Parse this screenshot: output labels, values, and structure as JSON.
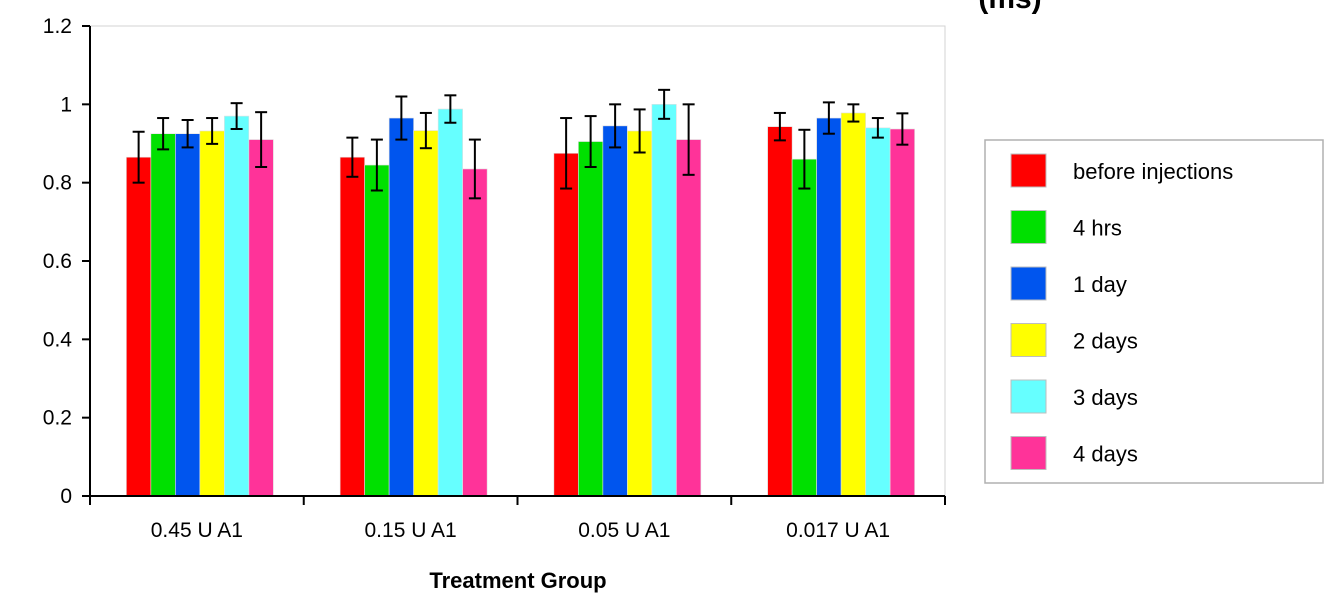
{
  "chart_data": {
    "type": "bar",
    "title": "(ms)",
    "xlabel": "Treatment Group",
    "ylabel": "",
    "ylim": [
      0,
      1.2
    ],
    "yticks": [
      0,
      0.2,
      0.4,
      0.6,
      0.8,
      1,
      1.2
    ],
    "ytick_labels": [
      "0",
      "0.2",
      "0.4",
      "0.6",
      "0.8",
      "1",
      "1.2"
    ],
    "categories": [
      "0.45 U A1",
      "0.15 U A1",
      "0.05 U A1",
      "0.017 U A1"
    ],
    "grid": false,
    "legend_position": "right",
    "error_bars": true,
    "series": [
      {
        "name": "before injections",
        "color": "#ff0000",
        "values": [
          0.865,
          0.865,
          0.875,
          0.943
        ],
        "errors": [
          0.065,
          0.05,
          0.09,
          0.035
        ]
      },
      {
        "name": "4 hrs",
        "color": "#00e000",
        "values": [
          0.925,
          0.845,
          0.905,
          0.86
        ],
        "errors": [
          0.04,
          0.065,
          0.065,
          0.075
        ]
      },
      {
        "name": "1 day",
        "color": "#0055ee",
        "values": [
          0.925,
          0.965,
          0.945,
          0.965
        ],
        "errors": [
          0.035,
          0.055,
          0.055,
          0.04
        ]
      },
      {
        "name": "2 days",
        "color": "#ffff00",
        "values": [
          0.932,
          0.933,
          0.932,
          0.978
        ],
        "errors": [
          0.033,
          0.045,
          0.055,
          0.022
        ]
      },
      {
        "name": "3 days",
        "color": "#66ffff",
        "values": [
          0.97,
          0.988,
          1.0,
          0.94
        ],
        "errors": [
          0.033,
          0.035,
          0.037,
          0.025
        ]
      },
      {
        "name": "4 days",
        "color": "#ff3399",
        "values": [
          0.91,
          0.835,
          0.91,
          0.937
        ],
        "errors": [
          0.07,
          0.075,
          0.09,
          0.04
        ]
      }
    ]
  }
}
